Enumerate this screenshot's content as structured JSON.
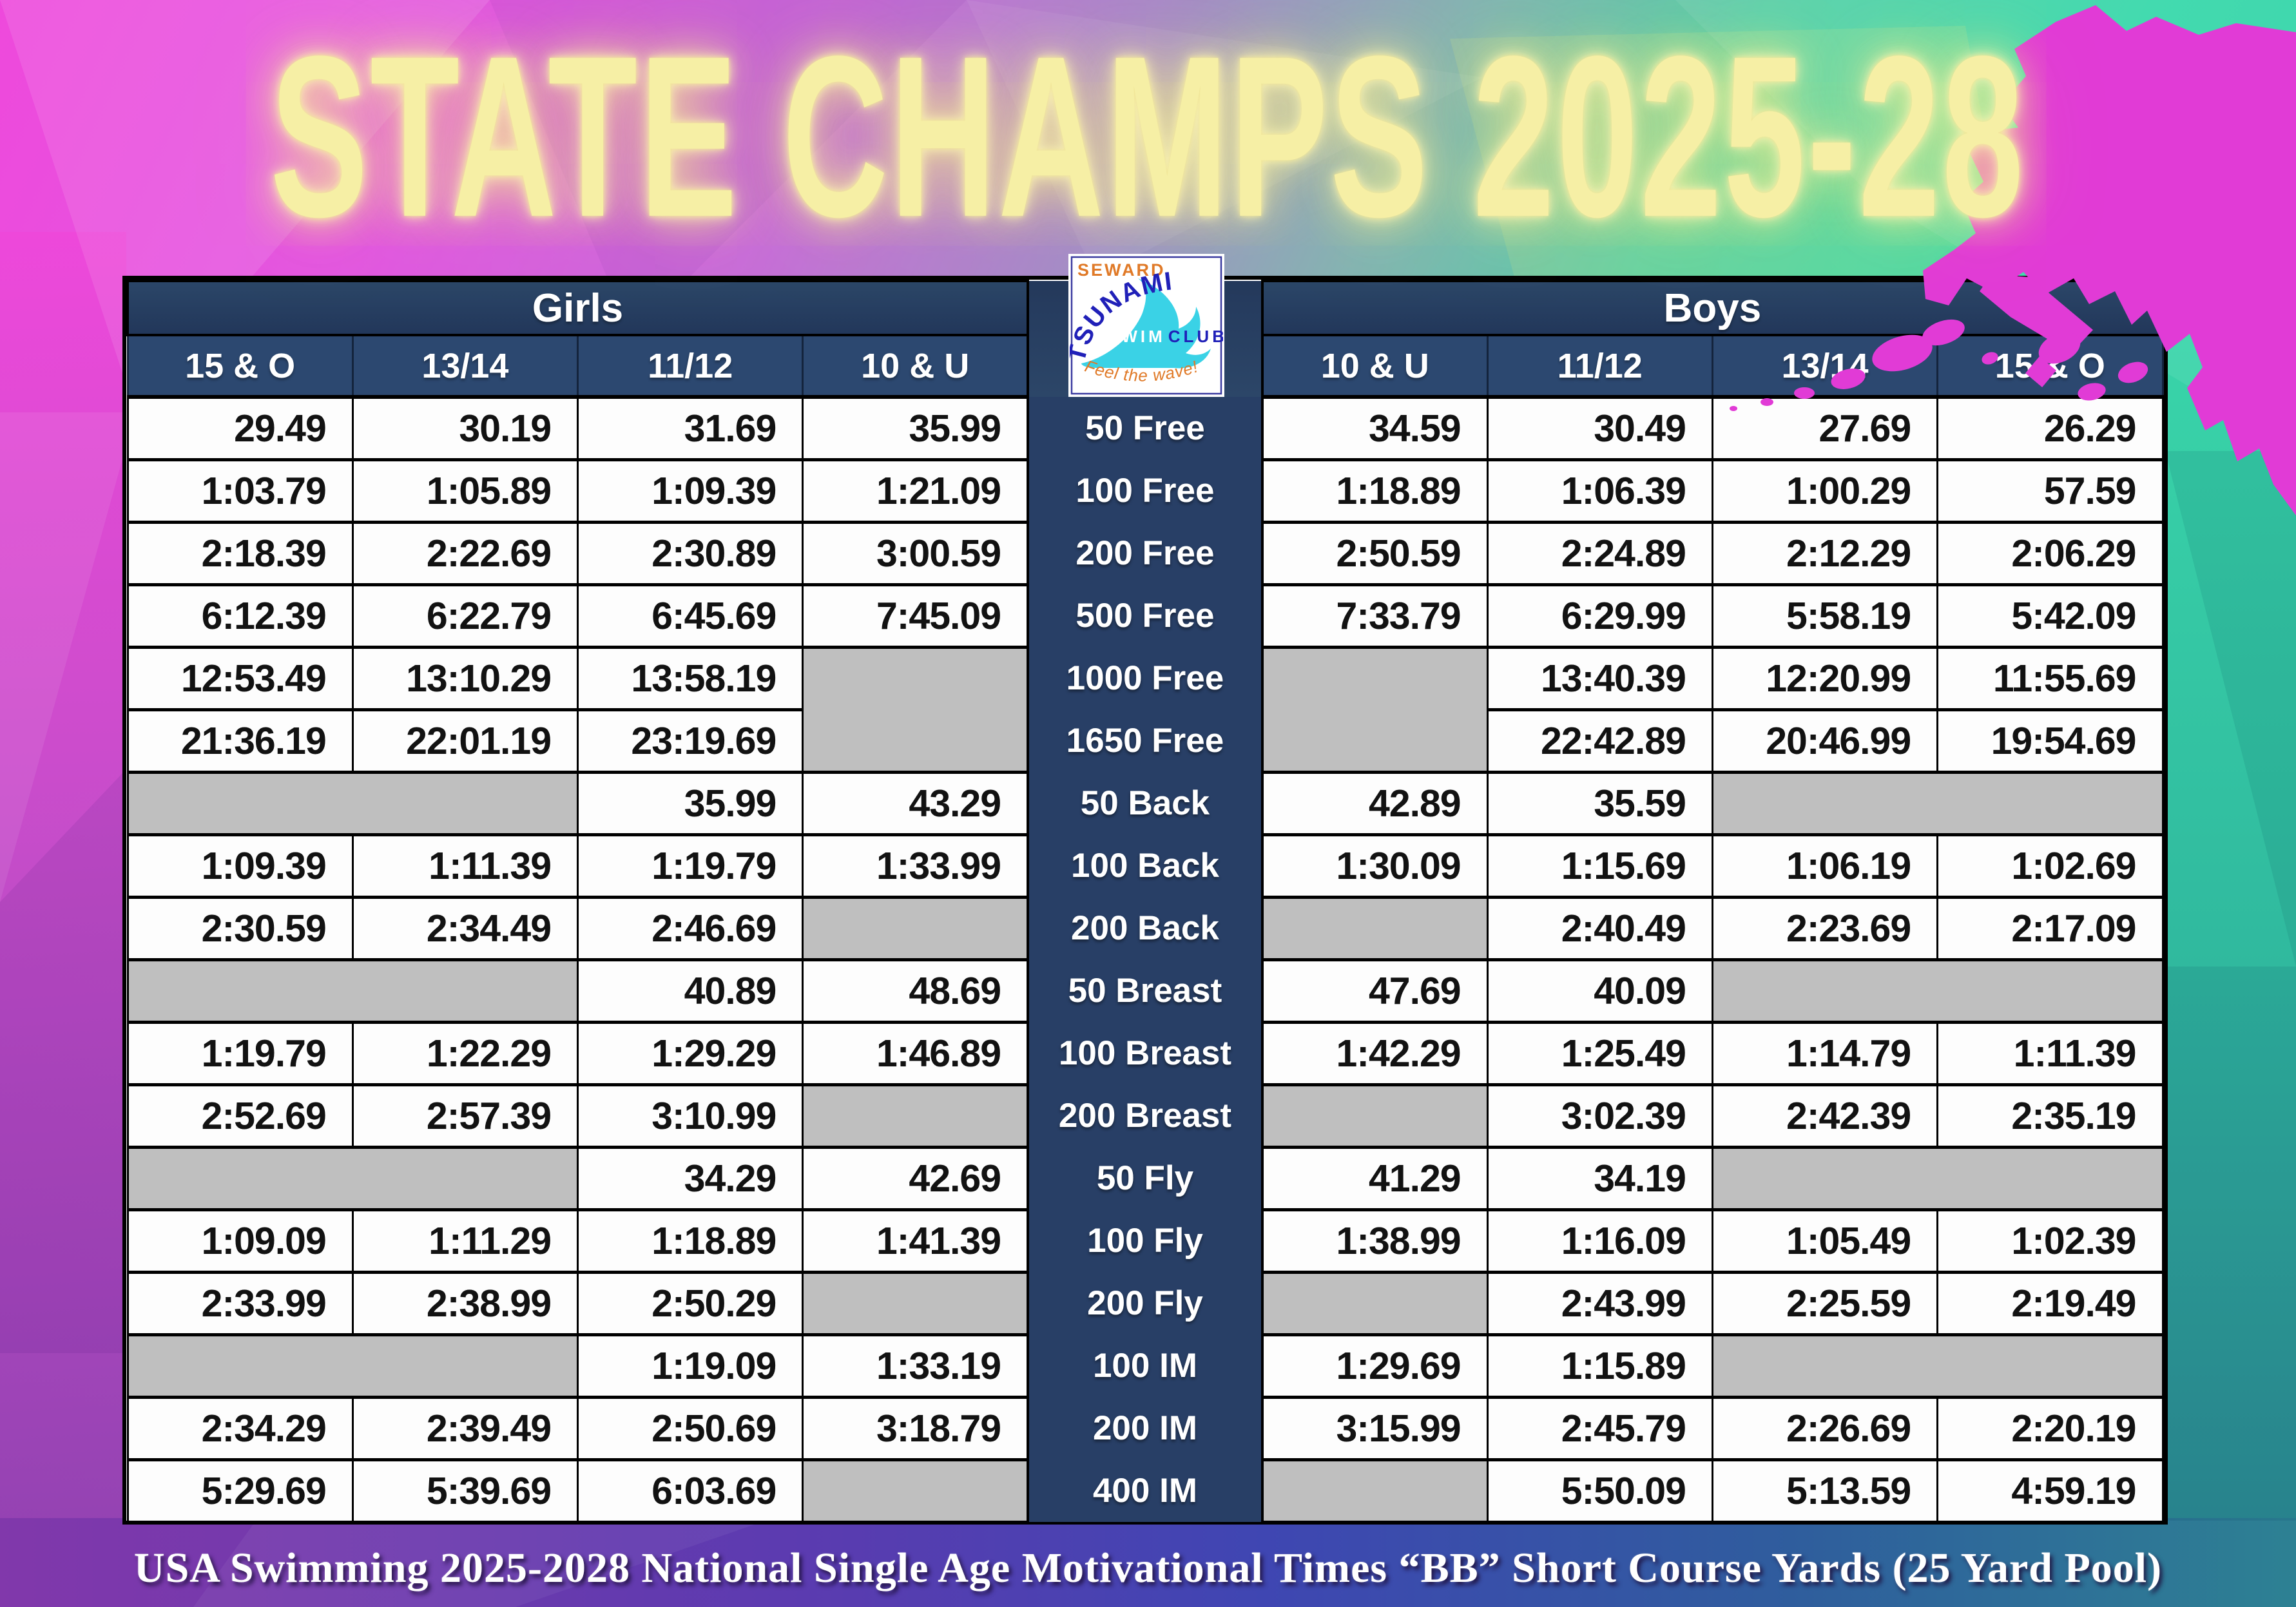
{
  "title": "STATE CHAMPS 2025-28",
  "caption": "USA Swimming 2025-2028 National Single Age Motivational Times “BB” Short Course Yards (25 Yard Pool)",
  "logo": {
    "location": "SEWARD",
    "team": "TSUNAMI",
    "word_swim": "SWIM",
    "word_club": "CLUB",
    "tagline": "Feel the wave!"
  },
  "chart_data": {
    "type": "table",
    "title": "STATE CHAMPS 2025-28",
    "column_groups": [
      "Girls",
      "Boys"
    ],
    "girls_columns": [
      "15 & O",
      "13/14",
      "11/12",
      "10 & U"
    ],
    "boys_columns": [
      "10 & U",
      "11/12",
      "13/14",
      "15 & O"
    ],
    "rows": [
      {
        "event": "50 Free",
        "girls": [
          "29.49",
          "30.19",
          "31.69",
          "35.99"
        ],
        "boys": [
          "34.59",
          "30.49",
          "27.69",
          "26.29"
        ]
      },
      {
        "event": "100 Free",
        "girls": [
          "1:03.79",
          "1:05.89",
          "1:09.39",
          "1:21.09"
        ],
        "boys": [
          "1:18.89",
          "1:06.39",
          "1:00.29",
          "57.59"
        ]
      },
      {
        "event": "200 Free",
        "girls": [
          "2:18.39",
          "2:22.69",
          "2:30.89",
          "3:00.59"
        ],
        "boys": [
          "2:50.59",
          "2:24.89",
          "2:12.29",
          "2:06.29"
        ]
      },
      {
        "event": "500 Free",
        "girls": [
          "6:12.39",
          "6:22.79",
          "6:45.69",
          "7:45.09"
        ],
        "boys": [
          "7:33.79",
          "6:29.99",
          "5:58.19",
          "5:42.09"
        ]
      },
      {
        "event": "1000 Free",
        "girls": [
          "12:53.49",
          "13:10.29",
          "13:58.19",
          ""
        ],
        "boys": [
          "",
          "13:40.39",
          "12:20.99",
          "11:55.69"
        ]
      },
      {
        "event": "1650 Free",
        "girls": [
          "21:36.19",
          "22:01.19",
          "23:19.69",
          "^"
        ],
        "boys": [
          "^",
          "22:42.89",
          "20:46.99",
          "19:54.69"
        ]
      },
      {
        "event": "50 Back",
        "girls": [
          "",
          "<",
          "35.99",
          "43.29"
        ],
        "boys": [
          "42.89",
          "35.59",
          "",
          "<"
        ]
      },
      {
        "event": "100 Back",
        "girls": [
          "1:09.39",
          "1:11.39",
          "1:19.79",
          "1:33.99"
        ],
        "boys": [
          "1:30.09",
          "1:15.69",
          "1:06.19",
          "1:02.69"
        ]
      },
      {
        "event": "200 Back",
        "girls": [
          "2:30.59",
          "2:34.49",
          "2:46.69",
          ""
        ],
        "boys": [
          "",
          "2:40.49",
          "2:23.69",
          "2:17.09"
        ]
      },
      {
        "event": "50 Breast",
        "girls": [
          "",
          "<",
          "40.89",
          "48.69"
        ],
        "boys": [
          "47.69",
          "40.09",
          "",
          "<"
        ]
      },
      {
        "event": "100 Breast",
        "girls": [
          "1:19.79",
          "1:22.29",
          "1:29.29",
          "1:46.89"
        ],
        "boys": [
          "1:42.29",
          "1:25.49",
          "1:14.79",
          "1:11.39"
        ]
      },
      {
        "event": "200 Breast",
        "girls": [
          "2:52.69",
          "2:57.39",
          "3:10.99",
          ""
        ],
        "boys": [
          "",
          "3:02.39",
          "2:42.39",
          "2:35.19"
        ]
      },
      {
        "event": "50 Fly",
        "girls": [
          "",
          "<",
          "34.29",
          "42.69"
        ],
        "boys": [
          "41.29",
          "34.19",
          "",
          "<"
        ]
      },
      {
        "event": "100 Fly",
        "girls": [
          "1:09.09",
          "1:11.29",
          "1:18.89",
          "1:41.39"
        ],
        "boys": [
          "1:38.99",
          "1:16.09",
          "1:05.49",
          "1:02.39"
        ]
      },
      {
        "event": "200 Fly",
        "girls": [
          "2:33.99",
          "2:38.99",
          "2:50.29",
          ""
        ],
        "boys": [
          "",
          "2:43.99",
          "2:25.59",
          "2:19.49"
        ]
      },
      {
        "event": "100 IM",
        "girls": [
          "",
          "<",
          "1:19.09",
          "1:33.19"
        ],
        "boys": [
          "1:29.69",
          "1:15.89",
          "",
          "<"
        ]
      },
      {
        "event": "200 IM",
        "girls": [
          "2:34.29",
          "2:39.49",
          "2:50.69",
          "3:18.79"
        ],
        "boys": [
          "3:15.99",
          "2:45.79",
          "2:26.69",
          "2:20.19"
        ]
      },
      {
        "event": "400 IM",
        "girls": [
          "5:29.69",
          "5:39.69",
          "6:03.69",
          ""
        ],
        "boys": [
          "",
          "5:50.09",
          "5:13.59",
          "4:59.19"
        ]
      }
    ]
  },
  "colors": {
    "header_navy": "#24395c",
    "age_band_navy": "#2c4870",
    "event_column_navy": "#283f66",
    "empty_cell_gray": "#bfbfbf",
    "title_yellow": "#f6efa5",
    "alaska_magenta": "#e13bd6",
    "background_pink": "#ee49dc",
    "background_teal": "#2ed2a6",
    "caption_purple": "#8138ab"
  }
}
